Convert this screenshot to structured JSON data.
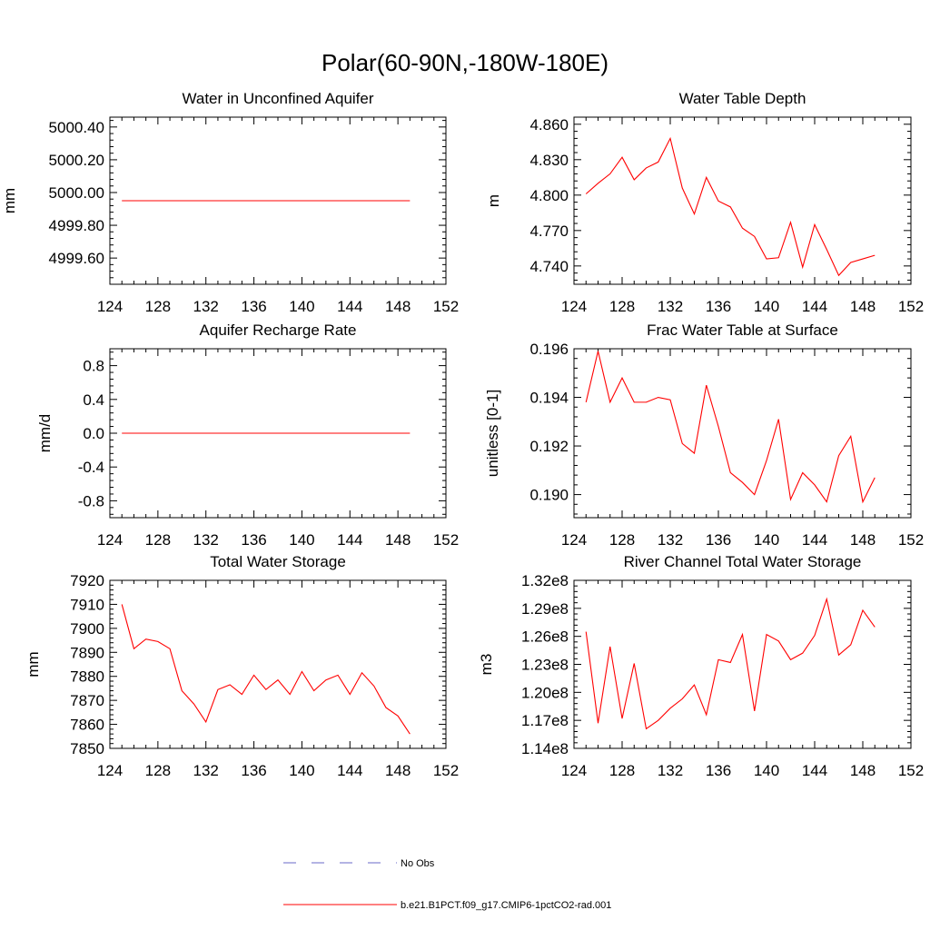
{
  "figure": {
    "title": "Polar(60-90N,-180W-180E)"
  },
  "colors": {
    "model_line": "#ff0000",
    "obs_line": "#6a6ac8",
    "axis": "#000000"
  },
  "legend": {
    "placement": "bottom-center",
    "entries": [
      {
        "label": "No Obs",
        "style": "dashed",
        "color": "#6a6ac8"
      },
      {
        "label": "b.e21.B1PCT.f09_g17.CMIP6-1pctCO2-rad.001",
        "style": "solid",
        "color": "#ff0000"
      }
    ]
  },
  "chart_data": [
    {
      "type": "line",
      "title": "Water in Unconfined Aquifer",
      "xlabel": "",
      "ylabel": "mm",
      "xlim": [
        124,
        152
      ],
      "ylim": [
        4999.44,
        5000.46
      ],
      "xticks": [
        124,
        128,
        132,
        136,
        140,
        144,
        148,
        152
      ],
      "yticks": [
        4999.6,
        4999.8,
        5000.0,
        5000.2,
        5000.4
      ],
      "ytick_labels": [
        "4999.60",
        "4999.80",
        "5000.00",
        "5000.20",
        "5000.40"
      ],
      "x": [
        125,
        126,
        127,
        128,
        129,
        130,
        131,
        132,
        133,
        134,
        135,
        136,
        137,
        138,
        139,
        140,
        141,
        142,
        143,
        144,
        145,
        146,
        147,
        148,
        149
      ],
      "series": [
        {
          "name": "b.e21.B1PCT.f09_g17.CMIP6-1pctCO2-rad.001",
          "values": [
            4999.95,
            4999.95,
            4999.95,
            4999.95,
            4999.95,
            4999.95,
            4999.95,
            4999.95,
            4999.95,
            4999.95,
            4999.95,
            4999.95,
            4999.95,
            4999.95,
            4999.95,
            4999.95,
            4999.95,
            4999.95,
            4999.95,
            4999.95,
            4999.95,
            4999.95,
            4999.95,
            4999.95,
            4999.95
          ]
        }
      ]
    },
    {
      "type": "line",
      "title": "Water Table Depth",
      "xlabel": "",
      "ylabel": "m",
      "xlim": [
        124,
        152
      ],
      "ylim": [
        4.7245,
        4.866
      ],
      "xticks": [
        124,
        128,
        132,
        136,
        140,
        144,
        148,
        152
      ],
      "yticks": [
        4.74,
        4.77,
        4.8,
        4.83,
        4.86
      ],
      "ytick_labels": [
        "4.740",
        "4.770",
        "4.800",
        "4.830",
        "4.860"
      ],
      "x": [
        125,
        126,
        127,
        128,
        129,
        130,
        131,
        132,
        133,
        134,
        135,
        136,
        137,
        138,
        139,
        140,
        141,
        142,
        143,
        144,
        145,
        146,
        147,
        148,
        149
      ],
      "series": [
        {
          "name": "b.e21.B1PCT.f09_g17.CMIP6-1pctCO2-rad.001",
          "values": [
            4.801,
            4.81,
            4.818,
            4.832,
            4.813,
            4.823,
            4.828,
            4.848,
            4.806,
            4.784,
            4.815,
            4.795,
            4.79,
            4.772,
            4.765,
            4.746,
            4.747,
            4.777,
            4.739,
            4.775,
            4.754,
            4.732,
            4.743,
            4.746,
            4.749
          ]
        }
      ]
    },
    {
      "type": "line",
      "title": "Aquifer Recharge Rate",
      "xlabel": "",
      "ylabel": "mm/d",
      "xlim": [
        124,
        152
      ],
      "ylim": [
        -1.0,
        1.0
      ],
      "xticks": [
        124,
        128,
        132,
        136,
        140,
        144,
        148,
        152
      ],
      "yticks": [
        -0.8,
        -0.4,
        0.0,
        0.4,
        0.8
      ],
      "ytick_labels": [
        "-0.8",
        "-0.4",
        "0.0",
        "0.4",
        "0.8"
      ],
      "x": [
        125,
        126,
        127,
        128,
        129,
        130,
        131,
        132,
        133,
        134,
        135,
        136,
        137,
        138,
        139,
        140,
        141,
        142,
        143,
        144,
        145,
        146,
        147,
        148,
        149
      ],
      "series": [
        {
          "name": "b.e21.B1PCT.f09_g17.CMIP6-1pctCO2-rad.001",
          "values": [
            0,
            0,
            0,
            0,
            0,
            0,
            0,
            0,
            0,
            0,
            0,
            0,
            0,
            0,
            0,
            0,
            0,
            0,
            0,
            0,
            0,
            0,
            0,
            0,
            0
          ]
        }
      ]
    },
    {
      "type": "line",
      "title": "Frac Water Table at Surface",
      "xlabel": "",
      "ylabel": "unitless [0-1]",
      "xlim": [
        124,
        152
      ],
      "ylim": [
        0.18905,
        0.196
      ],
      "xticks": [
        124,
        128,
        132,
        136,
        140,
        144,
        148,
        152
      ],
      "yticks": [
        0.19,
        0.192,
        0.194,
        0.196
      ],
      "ytick_labels": [
        "0.190",
        "0.192",
        "0.194",
        "0.196"
      ],
      "x": [
        125,
        126,
        127,
        128,
        129,
        130,
        131,
        132,
        133,
        134,
        135,
        136,
        137,
        138,
        139,
        140,
        141,
        142,
        143,
        144,
        145,
        146,
        147,
        148,
        149
      ],
      "series": [
        {
          "name": "b.e21.B1PCT.f09_g17.CMIP6-1pctCO2-rad.001",
          "values": [
            0.1938,
            0.1959,
            0.1938,
            0.1948,
            0.1938,
            0.1938,
            0.194,
            0.1939,
            0.1921,
            0.1917,
            0.1945,
            0.1928,
            0.1909,
            0.1905,
            0.19,
            0.1914,
            0.1931,
            0.1898,
            0.1909,
            0.1904,
            0.1897,
            0.1916,
            0.1924,
            0.1897,
            0.1907
          ]
        }
      ]
    },
    {
      "type": "line",
      "title": "Total Water Storage",
      "xlabel": "",
      "ylabel": "mm",
      "xlim": [
        124,
        152
      ],
      "ylim": [
        7850,
        7920
      ],
      "xticks": [
        124,
        128,
        132,
        136,
        140,
        144,
        148,
        152
      ],
      "yticks": [
        7850,
        7860,
        7870,
        7880,
        7890,
        7900,
        7910,
        7920
      ],
      "ytick_labels": [
        "7850",
        "7860",
        "7870",
        "7880",
        "7890",
        "7900",
        "7910",
        "7920"
      ],
      "x": [
        125,
        126,
        127,
        128,
        129,
        130,
        131,
        132,
        133,
        134,
        135,
        136,
        137,
        138,
        139,
        140,
        141,
        142,
        143,
        144,
        145,
        146,
        147,
        148,
        149
      ],
      "series": [
        {
          "name": "b.e21.B1PCT.f09_g17.CMIP6-1pctCO2-rad.001",
          "values": [
            7910.0,
            7891.5,
            7895.5,
            7894.5,
            7891.5,
            7874.0,
            7868.5,
            7861.0,
            7874.5,
            7876.5,
            7872.5,
            7880.5,
            7874.5,
            7878.5,
            7872.5,
            7882.0,
            7874.0,
            7878.5,
            7880.5,
            7872.5,
            7881.5,
            7876.0,
            7867.0,
            7863.5,
            7856.0
          ]
        }
      ]
    },
    {
      "type": "line",
      "title": "River Channel Total Water Storage",
      "xlabel": "",
      "ylabel": "m3",
      "xlim": [
        124,
        152
      ],
      "ylim": [
        114000000,
        132000000
      ],
      "xticks": [
        124,
        128,
        132,
        136,
        140,
        144,
        148,
        152
      ],
      "yticks": [
        114000000,
        117000000,
        120000000,
        123000000,
        126000000,
        129000000,
        132000000
      ],
      "ytick_labels": [
        "1.14e8",
        "1.17e8",
        "1.20e8",
        "1.23e8",
        "1.26e8",
        "1.29e8",
        "1.32e8"
      ],
      "x": [
        125,
        126,
        127,
        128,
        129,
        130,
        131,
        132,
        133,
        134,
        135,
        136,
        137,
        138,
        139,
        140,
        141,
        142,
        143,
        144,
        145,
        146,
        147,
        148,
        149
      ],
      "series": [
        {
          "name": "b.e21.B1PCT.f09_g17.CMIP6-1pctCO2-rad.001",
          "values": [
            126500000,
            116700000,
            124900000,
            117200000,
            123100000,
            116100000,
            117000000,
            118300000,
            119300000,
            120800000,
            117600000,
            123500000,
            123200000,
            126200000,
            118000000,
            126200000,
            125500000,
            123500000,
            124200000,
            126100000,
            130000000,
            124000000,
            125100000,
            128800000,
            127000000
          ]
        }
      ]
    }
  ]
}
